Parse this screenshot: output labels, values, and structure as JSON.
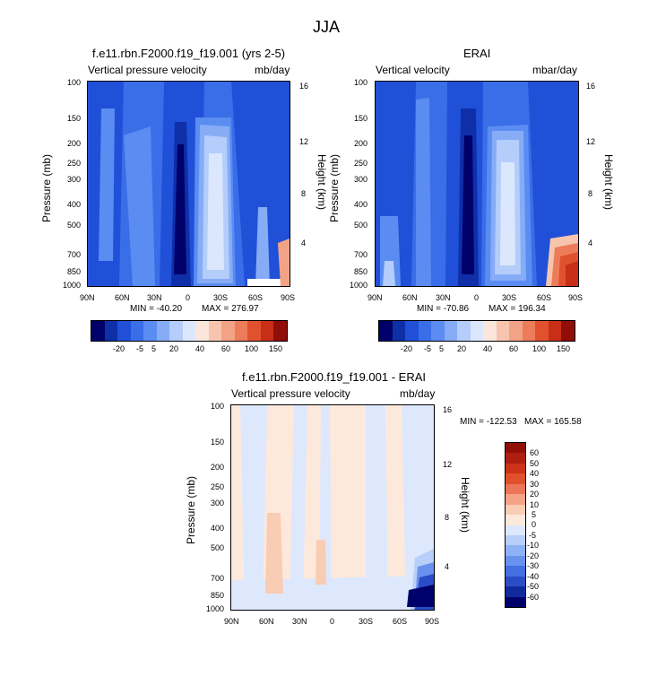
{
  "figure": {
    "title": "JJA"
  },
  "chart_data": [
    {
      "type": "heatmap",
      "title": "f.e11.rbn.F2000.f19_f19.001 (yrs 2-5)",
      "left_label": "Vertical pressure velocity",
      "right_label": "mb/day",
      "ylabel": "Pressure (mb)",
      "ylabel_right": "Height (km)",
      "x_ticks": [
        "90N",
        "60N",
        "30N",
        "0",
        "30S",
        "60S",
        "90S"
      ],
      "y_ticks": [
        "100",
        "150",
        "200",
        "250",
        "300",
        "400",
        "500",
        "700",
        "850",
        "1000"
      ],
      "y_ticks_right": [
        "16",
        "12",
        "8",
        "4"
      ],
      "min_label": "MIN = -40.20",
      "max_label": "MAX = 276.97",
      "colorbar_labels": [
        "-20",
        "-5",
        "5",
        "20",
        "40",
        "60",
        "100",
        "150"
      ]
    },
    {
      "type": "heatmap",
      "title": "ERAI",
      "left_label": "Vertical velocity",
      "right_label": "mbar/day",
      "ylabel": "Pressure (mb)",
      "ylabel_right": "Height (km)",
      "x_ticks": [
        "90N",
        "60N",
        "30N",
        "0",
        "30S",
        "60S",
        "90S"
      ],
      "y_ticks": [
        "100",
        "150",
        "200",
        "250",
        "300",
        "400",
        "500",
        "700",
        "850",
        "1000"
      ],
      "y_ticks_right": [
        "16",
        "12",
        "8",
        "4"
      ],
      "min_label": "MIN = -70.86",
      "max_label": "MAX = 196.34",
      "colorbar_labels": [
        "-20",
        "-5",
        "5",
        "20",
        "40",
        "60",
        "100",
        "150"
      ]
    },
    {
      "type": "heatmap",
      "title": "f.e11.rbn.F2000.f19_f19.001 - ERAI",
      "left_label": "Vertical pressure velocity",
      "right_label": "mb/day",
      "ylabel": "Pressure (mb)",
      "ylabel_right": "Height (km)",
      "x_ticks": [
        "90N",
        "60N",
        "30N",
        "0",
        "30S",
        "60S",
        "90S"
      ],
      "y_ticks": [
        "100",
        "150",
        "200",
        "250",
        "300",
        "400",
        "500",
        "700",
        "850",
        "1000"
      ],
      "y_ticks_right": [
        "16",
        "12",
        "8",
        "4"
      ],
      "min_label": "MIN = -122.53",
      "max_label": "MAX = 165.58",
      "colorbar_labels": [
        "60",
        "50",
        "40",
        "30",
        "20",
        "10",
        "5",
        "0",
        "-5",
        "-10",
        "-20",
        "-30",
        "-40",
        "-50",
        "-60"
      ]
    }
  ],
  "colors": {
    "full_scale": [
      "#00006a",
      "#0f2fa8",
      "#2050d8",
      "#3a6ee8",
      "#5a8cf2",
      "#86acf6",
      "#b4cdfa",
      "#dbe7fd",
      "#fbe6dc",
      "#f7c5ae",
      "#f2a385",
      "#ec7c5a",
      "#e0522e",
      "#c82e18",
      "#900d08"
    ],
    "diff_scale": [
      "#901008",
      "#b01e10",
      "#cc3218",
      "#e0502c",
      "#ec7658",
      "#f4a486",
      "#f9ccb4",
      "#fde9dc",
      "#dde8fd",
      "#b8cffa",
      "#8eb2f5",
      "#6892ee",
      "#4270e2",
      "#2a4cc6",
      "#102a9c",
      "#00006a"
    ]
  }
}
